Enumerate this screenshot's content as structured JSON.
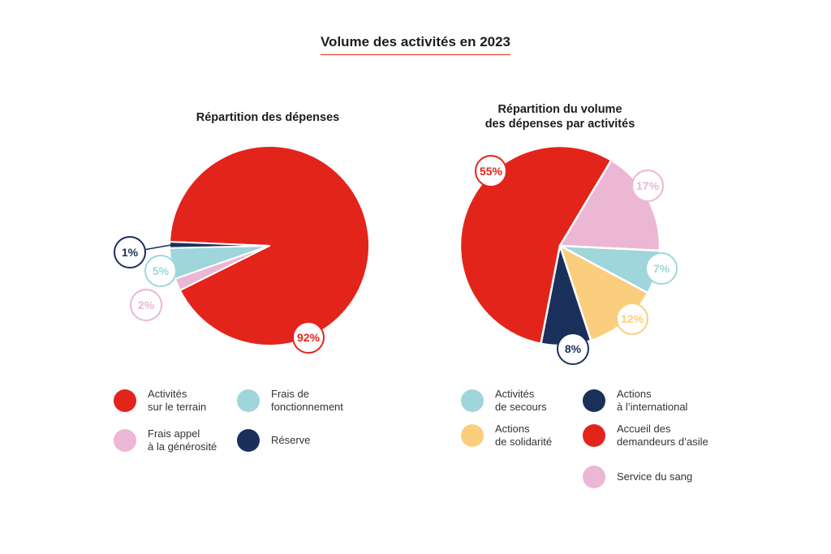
{
  "title": "Volume des activités en 2023",
  "colors": {
    "red": "#e3241b",
    "navy": "#1b2f5b",
    "teal": "#9ed6db",
    "pink": "#ebb7d4",
    "yellow": "#fbce7e",
    "title_underline": "#e3241b"
  },
  "chart_data": [
    {
      "type": "pie",
      "title": "Répartition des dépenses",
      "slices": [
        {
          "label": "Activités sur le terrain",
          "value": 92,
          "display": "92%",
          "color": "#e3241b"
        },
        {
          "label": "Frais appel à la générosité",
          "value": 2,
          "display": "2%",
          "color": "#ebb7d4"
        },
        {
          "label": "Frais de fonctionnement",
          "value": 5,
          "display": "5%",
          "color": "#9ed6db"
        },
        {
          "label": "Réserve",
          "value": 1,
          "display": "1%",
          "color": "#1b2f5b"
        }
      ],
      "legend": [
        {
          "label": "Activités\nsur le terrain",
          "color": "#e3241b"
        },
        {
          "label": "Frais de\nfonctionnement",
          "color": "#9ed6db"
        },
        {
          "label": "Frais appel\nà la générosité",
          "color": "#ebb7d4"
        },
        {
          "label": "Réserve",
          "color": "#1b2f5b"
        }
      ]
    },
    {
      "type": "pie",
      "title": "Répartition du volume\ndes dépenses par activités",
      "slices": [
        {
          "label": "Accueil des demandeurs d’asile",
          "value": 55,
          "display": "55%",
          "color": "#e3241b"
        },
        {
          "label": "Service du sang",
          "value": 17,
          "display": "17%",
          "color": "#ebb7d4"
        },
        {
          "label": "Activités de secours",
          "value": 7,
          "display": "7%",
          "color": "#9ed6db"
        },
        {
          "label": "Actions de solidarité",
          "value": 12,
          "display": "12%",
          "color": "#fbce7e"
        },
        {
          "label": "Actions à l’international",
          "value": 8,
          "display": "8%",
          "color": "#1b2f5b"
        }
      ],
      "legend": [
        {
          "label": "Activités\nde secours",
          "color": "#9ed6db"
        },
        {
          "label": "Actions\nà l’international",
          "color": "#1b2f5b"
        },
        {
          "label": "Actions\nde solidarité",
          "color": "#fbce7e"
        },
        {
          "label": "Accueil des\ndemandeurs d’asile",
          "color": "#e3241b"
        },
        {
          "label": "Service du sang",
          "color": "#ebb7d4"
        }
      ]
    }
  ]
}
